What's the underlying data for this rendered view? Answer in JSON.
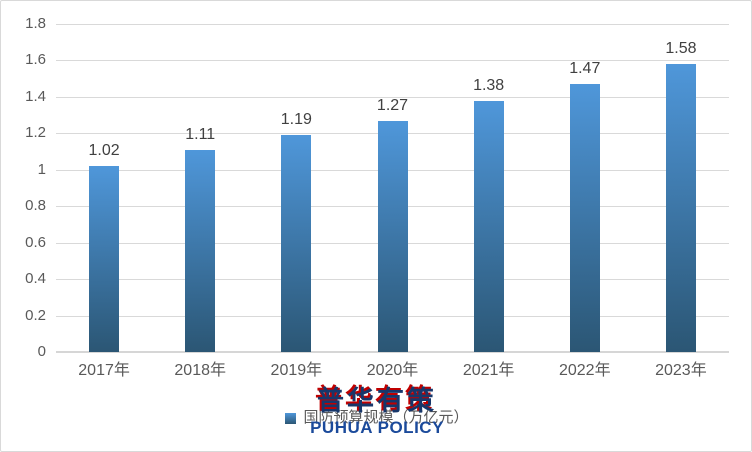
{
  "chart_data": {
    "type": "bar",
    "categories": [
      "2017年",
      "2018年",
      "2019年",
      "2020年",
      "2021年",
      "2022年",
      "2023年"
    ],
    "values": [
      1.02,
      1.11,
      1.19,
      1.27,
      1.38,
      1.47,
      1.58
    ],
    "data_labels": [
      "1.02",
      "1.11",
      "1.19",
      "1.27",
      "1.38",
      "1.47",
      "1.58"
    ],
    "series_name": "国防预算规模（万亿元）",
    "title": "",
    "xlabel": "",
    "ylabel": "",
    "ylim": [
      0,
      1.8
    ],
    "yticks": [
      "0",
      "0.2",
      "0.4",
      "0.6",
      "0.8",
      "1",
      "1.2",
      "1.4",
      "1.6",
      "1.8"
    ],
    "grid": true,
    "legend_position": "bottom"
  },
  "legend": {
    "label": "国防预算规模（万亿元）"
  },
  "watermark": {
    "cn": "普华有策",
    "en": "PUHUA POLICY"
  },
  "colors": {
    "bar_top": "#4f97da",
    "bar_bottom": "#2b5674",
    "gridline": "#d9d9d9",
    "axis_line": "#d6d6d6",
    "tick_label": "#595959",
    "data_label": "#404040",
    "watermark_blue": "#17376b",
    "watermark_red": "#c00000",
    "watermark_en_blue": "#1b4a9b",
    "border": "#d9d9d9"
  }
}
